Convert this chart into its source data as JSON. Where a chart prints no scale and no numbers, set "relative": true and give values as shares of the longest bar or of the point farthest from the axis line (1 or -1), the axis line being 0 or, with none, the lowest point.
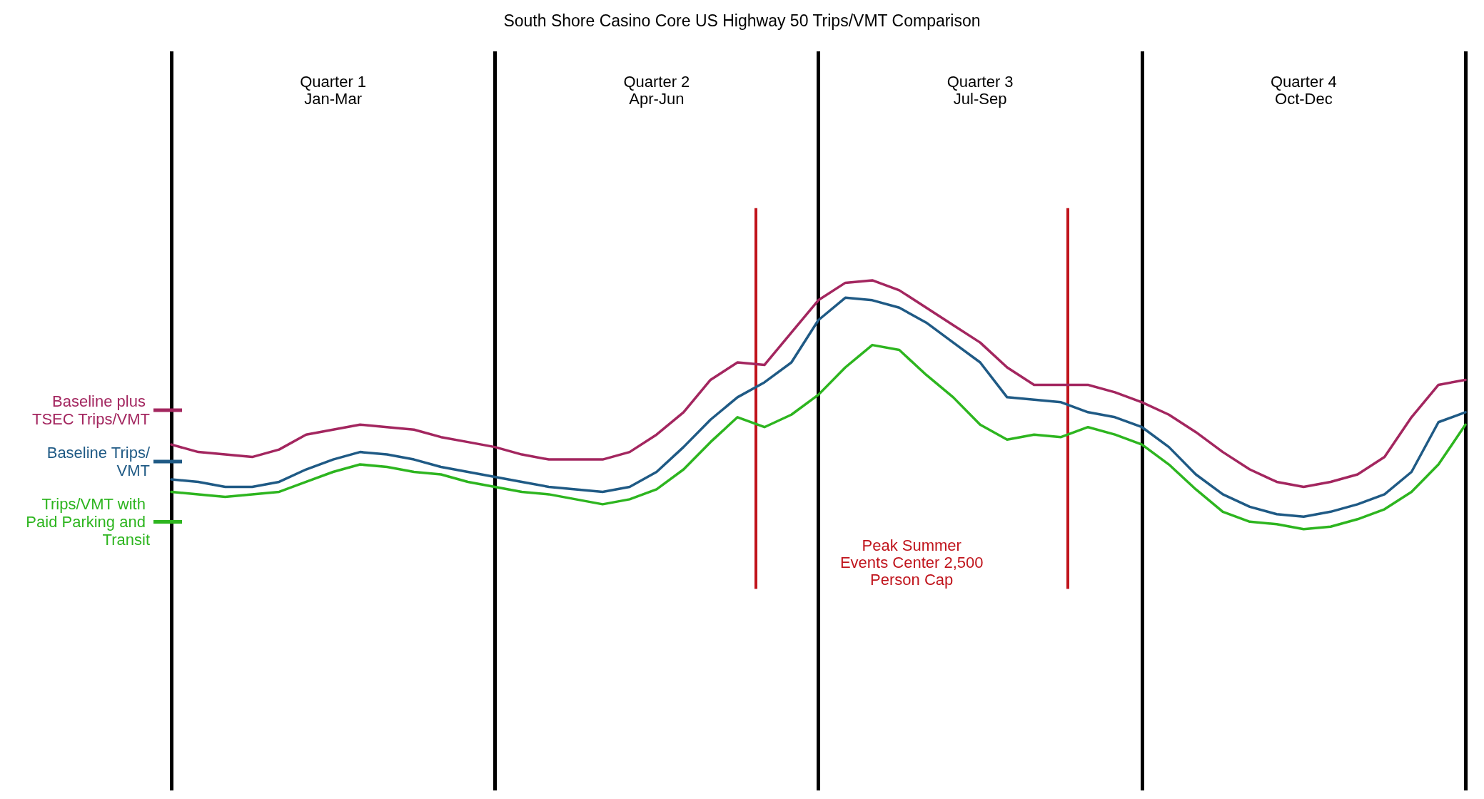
{
  "chart_data": {
    "type": "line",
    "title": "South Shore Casino Core US Highway 50 Trips/VMT Comparison",
    "relative": true,
    "legend": "left",
    "grid": "x",
    "marker": "none",
    "line_style": "solid",
    "categories": [
      null,
      null,
      null,
      null,
      null,
      null,
      null,
      null,
      null,
      null,
      null,
      null,
      null,
      null,
      null,
      null,
      null,
      null,
      null,
      null,
      null,
      null,
      null,
      null,
      null,
      null,
      null,
      null,
      null,
      null,
      null,
      null,
      null,
      null,
      null,
      null,
      null,
      null,
      null,
      null,
      null,
      null,
      null,
      null,
      null,
      null,
      null,
      null,
      null
    ],
    "series": [
      {
        "name": "Baseline plus TSEC Trips/VMT",
        "color": "#a3265f",
        "values": [
          0.34,
          0.31,
          0.3,
          0.29,
          0.32,
          0.38,
          0.4,
          0.42,
          0.41,
          0.4,
          0.37,
          0.35,
          0.33,
          0.3,
          0.28,
          0.28,
          0.28,
          0.31,
          0.38,
          0.47,
          0.6,
          0.67,
          0.66,
          0.79,
          0.92,
          0.99,
          1.0,
          0.96,
          0.89,
          0.82,
          0.75,
          0.65,
          0.58,
          0.58,
          0.58,
          0.55,
          0.51,
          0.46,
          0.39,
          0.31,
          0.24,
          0.19,
          0.17,
          0.19,
          0.22,
          0.29,
          0.45,
          0.58,
          0.6
        ]
      },
      {
        "name": "Baseline Trips/VMT",
        "color": "#1f5a85",
        "values": [
          0.2,
          0.19,
          0.17,
          0.17,
          0.19,
          0.24,
          0.28,
          0.31,
          0.3,
          0.28,
          0.25,
          0.23,
          0.21,
          0.19,
          0.17,
          0.16,
          0.15,
          0.17,
          0.23,
          0.33,
          0.44,
          0.53,
          0.59,
          0.67,
          0.84,
          0.93,
          0.92,
          0.89,
          0.83,
          0.75,
          0.67,
          0.53,
          0.52,
          0.51,
          0.47,
          0.45,
          0.41,
          0.33,
          0.22,
          0.14,
          0.09,
          0.06,
          0.05,
          0.07,
          0.1,
          0.14,
          0.23,
          0.43,
          0.47
        ]
      },
      {
        "name": "Trips/VMT with Paid Parking and Transit",
        "color": "#2db51f",
        "values": [
          0.15,
          0.14,
          0.13,
          0.14,
          0.15,
          0.19,
          0.23,
          0.26,
          0.25,
          0.23,
          0.22,
          0.19,
          0.17,
          0.15,
          0.14,
          0.12,
          0.1,
          0.12,
          0.16,
          0.24,
          0.35,
          0.45,
          0.41,
          0.46,
          0.54,
          0.65,
          0.74,
          0.72,
          0.62,
          0.53,
          0.42,
          0.36,
          0.38,
          0.37,
          0.41,
          0.38,
          0.34,
          0.26,
          0.16,
          0.07,
          0.03,
          0.02,
          0,
          0.01,
          0.04,
          0.08,
          0.15,
          0.26,
          0.42
        ]
      }
    ],
    "annotations": [
      "Quarter 1\nJan-Mar",
      "Quarter 2\nApr-Jun",
      "Quarter 3\nJul-Sep",
      "Quarter 4\nOct-Dec",
      "Peak Summer\nEvents Center 2,500\nPerson Cap"
    ]
  }
}
